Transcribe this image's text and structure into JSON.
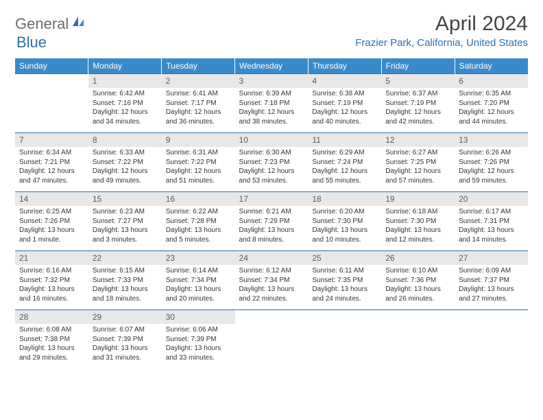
{
  "logo": {
    "text_general": "General",
    "text_blue": "Blue"
  },
  "title": "April 2024",
  "location": "Frazier Park, California, United States",
  "day_headers": [
    "Sunday",
    "Monday",
    "Tuesday",
    "Wednesday",
    "Thursday",
    "Friday",
    "Saturday"
  ],
  "colors": {
    "header_bg": "#3a8ac9",
    "header_text": "#ffffff",
    "daynum_bg": "#e8e8e8",
    "border": "#2f6fa8",
    "location_text": "#2f6fa8"
  },
  "weeks": [
    [
      {
        "num": "",
        "lines": []
      },
      {
        "num": "1",
        "lines": [
          "Sunrise: 6:42 AM",
          "Sunset: 7:16 PM",
          "Daylight: 12 hours",
          "and 34 minutes."
        ]
      },
      {
        "num": "2",
        "lines": [
          "Sunrise: 6:41 AM",
          "Sunset: 7:17 PM",
          "Daylight: 12 hours",
          "and 36 minutes."
        ]
      },
      {
        "num": "3",
        "lines": [
          "Sunrise: 6:39 AM",
          "Sunset: 7:18 PM",
          "Daylight: 12 hours",
          "and 38 minutes."
        ]
      },
      {
        "num": "4",
        "lines": [
          "Sunrise: 6:38 AM",
          "Sunset: 7:19 PM",
          "Daylight: 12 hours",
          "and 40 minutes."
        ]
      },
      {
        "num": "5",
        "lines": [
          "Sunrise: 6:37 AM",
          "Sunset: 7:19 PM",
          "Daylight: 12 hours",
          "and 42 minutes."
        ]
      },
      {
        "num": "6",
        "lines": [
          "Sunrise: 6:35 AM",
          "Sunset: 7:20 PM",
          "Daylight: 12 hours",
          "and 44 minutes."
        ]
      }
    ],
    [
      {
        "num": "7",
        "lines": [
          "Sunrise: 6:34 AM",
          "Sunset: 7:21 PM",
          "Daylight: 12 hours",
          "and 47 minutes."
        ]
      },
      {
        "num": "8",
        "lines": [
          "Sunrise: 6:33 AM",
          "Sunset: 7:22 PM",
          "Daylight: 12 hours",
          "and 49 minutes."
        ]
      },
      {
        "num": "9",
        "lines": [
          "Sunrise: 6:31 AM",
          "Sunset: 7:22 PM",
          "Daylight: 12 hours",
          "and 51 minutes."
        ]
      },
      {
        "num": "10",
        "lines": [
          "Sunrise: 6:30 AM",
          "Sunset: 7:23 PM",
          "Daylight: 12 hours",
          "and 53 minutes."
        ]
      },
      {
        "num": "11",
        "lines": [
          "Sunrise: 6:29 AM",
          "Sunset: 7:24 PM",
          "Daylight: 12 hours",
          "and 55 minutes."
        ]
      },
      {
        "num": "12",
        "lines": [
          "Sunrise: 6:27 AM",
          "Sunset: 7:25 PM",
          "Daylight: 12 hours",
          "and 57 minutes."
        ]
      },
      {
        "num": "13",
        "lines": [
          "Sunrise: 6:26 AM",
          "Sunset: 7:26 PM",
          "Daylight: 12 hours",
          "and 59 minutes."
        ]
      }
    ],
    [
      {
        "num": "14",
        "lines": [
          "Sunrise: 6:25 AM",
          "Sunset: 7:26 PM",
          "Daylight: 13 hours",
          "and 1 minute."
        ]
      },
      {
        "num": "15",
        "lines": [
          "Sunrise: 6:23 AM",
          "Sunset: 7:27 PM",
          "Daylight: 13 hours",
          "and 3 minutes."
        ]
      },
      {
        "num": "16",
        "lines": [
          "Sunrise: 6:22 AM",
          "Sunset: 7:28 PM",
          "Daylight: 13 hours",
          "and 5 minutes."
        ]
      },
      {
        "num": "17",
        "lines": [
          "Sunrise: 6:21 AM",
          "Sunset: 7:29 PM",
          "Daylight: 13 hours",
          "and 8 minutes."
        ]
      },
      {
        "num": "18",
        "lines": [
          "Sunrise: 6:20 AM",
          "Sunset: 7:30 PM",
          "Daylight: 13 hours",
          "and 10 minutes."
        ]
      },
      {
        "num": "19",
        "lines": [
          "Sunrise: 6:18 AM",
          "Sunset: 7:30 PM",
          "Daylight: 13 hours",
          "and 12 minutes."
        ]
      },
      {
        "num": "20",
        "lines": [
          "Sunrise: 6:17 AM",
          "Sunset: 7:31 PM",
          "Daylight: 13 hours",
          "and 14 minutes."
        ]
      }
    ],
    [
      {
        "num": "21",
        "lines": [
          "Sunrise: 6:16 AM",
          "Sunset: 7:32 PM",
          "Daylight: 13 hours",
          "and 16 minutes."
        ]
      },
      {
        "num": "22",
        "lines": [
          "Sunrise: 6:15 AM",
          "Sunset: 7:33 PM",
          "Daylight: 13 hours",
          "and 18 minutes."
        ]
      },
      {
        "num": "23",
        "lines": [
          "Sunrise: 6:14 AM",
          "Sunset: 7:34 PM",
          "Daylight: 13 hours",
          "and 20 minutes."
        ]
      },
      {
        "num": "24",
        "lines": [
          "Sunrise: 6:12 AM",
          "Sunset: 7:34 PM",
          "Daylight: 13 hours",
          "and 22 minutes."
        ]
      },
      {
        "num": "25",
        "lines": [
          "Sunrise: 6:11 AM",
          "Sunset: 7:35 PM",
          "Daylight: 13 hours",
          "and 24 minutes."
        ]
      },
      {
        "num": "26",
        "lines": [
          "Sunrise: 6:10 AM",
          "Sunset: 7:36 PM",
          "Daylight: 13 hours",
          "and 26 minutes."
        ]
      },
      {
        "num": "27",
        "lines": [
          "Sunrise: 6:09 AM",
          "Sunset: 7:37 PM",
          "Daylight: 13 hours",
          "and 27 minutes."
        ]
      }
    ],
    [
      {
        "num": "28",
        "lines": [
          "Sunrise: 6:08 AM",
          "Sunset: 7:38 PM",
          "Daylight: 13 hours",
          "and 29 minutes."
        ]
      },
      {
        "num": "29",
        "lines": [
          "Sunrise: 6:07 AM",
          "Sunset: 7:39 PM",
          "Daylight: 13 hours",
          "and 31 minutes."
        ]
      },
      {
        "num": "30",
        "lines": [
          "Sunrise: 6:06 AM",
          "Sunset: 7:39 PM",
          "Daylight: 13 hours",
          "and 33 minutes."
        ]
      },
      {
        "num": "",
        "lines": []
      },
      {
        "num": "",
        "lines": []
      },
      {
        "num": "",
        "lines": []
      },
      {
        "num": "",
        "lines": []
      }
    ]
  ]
}
